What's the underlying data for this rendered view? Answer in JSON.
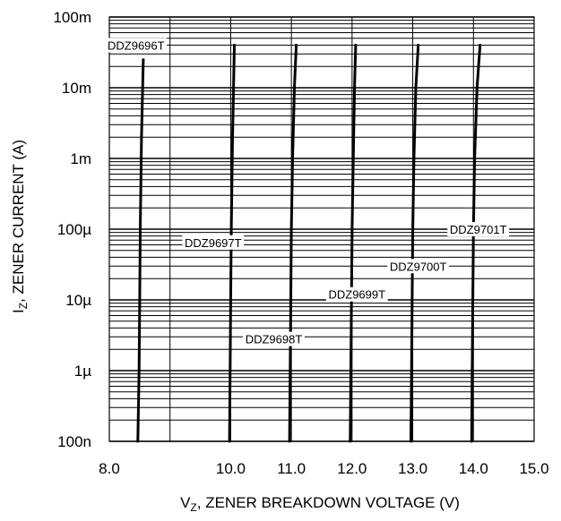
{
  "chart_data": {
    "type": "line",
    "x_scale": "linear",
    "y_scale": "log",
    "xlim": [
      8.0,
      15.0
    ],
    "ylim": [
      1e-07,
      0.1
    ],
    "x_ticks": [
      8.0,
      9.0,
      10.0,
      11.0,
      12.0,
      13.0,
      14.0,
      15.0
    ],
    "x_tick_labels": [
      "8.0",
      "10.0",
      "11.0",
      "12.0",
      "13.0",
      "14.0",
      "15.0"
    ],
    "x_tick_label_values": [
      8.0,
      10.0,
      11.0,
      12.0,
      13.0,
      14.0,
      15.0
    ],
    "y_ticks": [
      1e-07,
      1e-06,
      1e-05,
      0.0001,
      0.001,
      0.01,
      0.1
    ],
    "y_tick_labels": [
      "100n",
      "1µ",
      "10µ",
      "100µ",
      "1m",
      "10m",
      "100m"
    ],
    "xlabel_main": "V",
    "xlabel_sub": "Z",
    "xlabel_rest": ", ZENER BREAKDOWN VOLTAGE (V)",
    "ylabel_main": "I",
    "ylabel_sub": "Z",
    "ylabel_rest": ", ZENER CURRENT (A)",
    "grid": true,
    "series": [
      {
        "name": "DDZ9696T",
        "x": [
          8.47,
          8.49,
          8.5,
          8.51,
          8.53,
          8.56
        ],
        "y": [
          1e-07,
          1e-06,
          1e-05,
          0.0001,
          0.002,
          0.025
        ]
      },
      {
        "name": "DDZ9697T",
        "x": [
          9.98,
          9.99,
          10.0,
          10.01,
          10.03,
          10.06
        ],
        "y": [
          1e-07,
          1e-06,
          1e-05,
          0.0001,
          0.002,
          0.04
        ]
      },
      {
        "name": "DDZ9698T",
        "x": [
          10.97,
          10.98,
          10.99,
          11.0,
          11.02,
          11.05,
          11.08
        ],
        "y": [
          1e-07,
          1e-06,
          1e-05,
          0.0001,
          0.001,
          0.01,
          0.04
        ]
      },
      {
        "name": "DDZ9699T",
        "x": [
          11.97,
          11.98,
          11.99,
          12.0,
          12.02,
          12.04,
          12.06
        ],
        "y": [
          1e-07,
          1e-06,
          1e-05,
          0.0001,
          0.001,
          0.01,
          0.04
        ]
      },
      {
        "name": "DDZ9700T",
        "x": [
          12.97,
          12.98,
          12.99,
          13.0,
          13.02,
          13.05,
          13.09
        ],
        "y": [
          1e-07,
          1e-06,
          1e-05,
          0.0001,
          0.001,
          0.01,
          0.04
        ]
      },
      {
        "name": "DDZ9701T",
        "x": [
          13.97,
          13.98,
          13.99,
          14.0,
          14.02,
          14.06,
          14.11
        ],
        "y": [
          1e-07,
          1e-06,
          1e-05,
          0.0001,
          0.001,
          0.01,
          0.04
        ]
      }
    ],
    "annotations": [
      {
        "text": "DDZ9696T",
        "series": "DDZ9696T"
      },
      {
        "text": "DDZ9697T",
        "series": "DDZ9697T"
      },
      {
        "text": "DDZ9698T",
        "series": "DDZ9698T"
      },
      {
        "text": "DDZ9699T",
        "series": "DDZ9699T"
      },
      {
        "text": "DDZ9700T",
        "series": "DDZ9700T"
      },
      {
        "text": "DDZ9701T",
        "series": "DDZ9701T"
      }
    ]
  }
}
